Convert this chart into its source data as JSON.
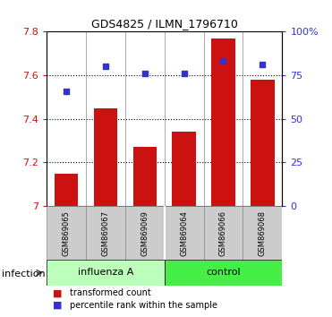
{
  "title": "GDS4825 / ILMN_1796710",
  "samples": [
    "GSM869065",
    "GSM869067",
    "GSM869069",
    "GSM869064",
    "GSM869066",
    "GSM869068"
  ],
  "bar_values": [
    7.15,
    7.45,
    7.27,
    7.34,
    7.77,
    7.58
  ],
  "dot_values": [
    66,
    80,
    76,
    76,
    83,
    81
  ],
  "bar_color": "#cc1111",
  "dot_color": "#3333cc",
  "ylim_left": [
    7.0,
    7.8
  ],
  "ylim_right": [
    0,
    100
  ],
  "yticks_left": [
    7.0,
    7.2,
    7.4,
    7.6,
    7.8
  ],
  "yticks_right": [
    0,
    25,
    50,
    75,
    100
  ],
  "ytick_left_color": "#cc1111",
  "ytick_right_color": "#3333cc",
  "bar_width": 0.6,
  "background_color": "#ffffff",
  "legend_bar_label": "transformed count",
  "legend_dot_label": "percentile rank within the sample",
  "infection_label": "infection",
  "group1_label": "influenza A",
  "group2_label": "control",
  "group1_color": "#bbffbb",
  "group2_color": "#44ee44",
  "grid_lines": [
    7.2,
    7.4,
    7.6
  ],
  "title_fontsize": 9,
  "tick_fontsize": 8,
  "label_fontsize": 7,
  "sample_fontsize": 6
}
